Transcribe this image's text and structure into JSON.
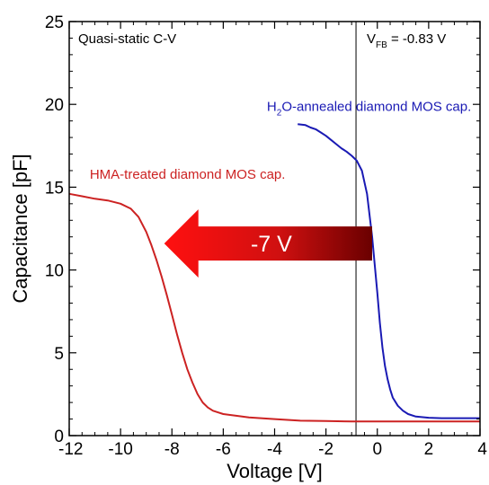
{
  "chart_data": {
    "type": "line",
    "xlabel": "Voltage [V]",
    "ylabel": "Capacitance [pF]",
    "xlim": [
      -12,
      4
    ],
    "ylim": [
      0,
      25
    ],
    "x_ticks": [
      "-12",
      "-10",
      "-8",
      "-6",
      "-4",
      "-2",
      "0",
      "2",
      "4"
    ],
    "y_ticks": [
      "0",
      "5",
      "10",
      "15",
      "20",
      "25"
    ],
    "grid": false,
    "legend": "none",
    "annotations": {
      "corner_label": "Quasi-static C-V",
      "vfb_main": "V",
      "vfb_sub": "FB",
      "vfb_value": " = -0.83 V",
      "vfb_line_x": -0.83,
      "arrow_text": "-7 V",
      "arrow_from_x": -0.2,
      "arrow_to_x": -8.3,
      "arrow_y": 11.6
    },
    "series": [
      {
        "name_pre": "H",
        "name_sub": "2",
        "name_post": "O-annealed diamond MOS cap.",
        "color": "#1a1ab4",
        "label_pos": [
          -4.3,
          19.6
        ],
        "x": [
          -3.1,
          -2.8,
          -2.6,
          -2.4,
          -2.2,
          -2.0,
          -1.8,
          -1.6,
          -1.4,
          -1.2,
          -1.0,
          -0.8,
          -0.6,
          -0.4,
          -0.2,
          0.0,
          0.1,
          0.2,
          0.3,
          0.4,
          0.5,
          0.6,
          0.8,
          1.0,
          1.2,
          1.5,
          2.0,
          2.5,
          3.0,
          4.0
        ],
        "y": [
          18.8,
          18.75,
          18.6,
          18.5,
          18.3,
          18.1,
          17.85,
          17.6,
          17.35,
          17.15,
          16.9,
          16.6,
          16.0,
          14.6,
          12.0,
          8.6,
          6.8,
          5.3,
          4.2,
          3.4,
          2.8,
          2.3,
          1.8,
          1.5,
          1.3,
          1.15,
          1.08,
          1.05,
          1.05,
          1.05
        ]
      },
      {
        "name": "HMA-treated diamond MOS cap.",
        "color": "#cc2222",
        "label_pos": [
          -11.2,
          15.5
        ],
        "x": [
          -12.0,
          -11.5,
          -11.0,
          -10.5,
          -10.0,
          -9.6,
          -9.3,
          -9.0,
          -8.8,
          -8.6,
          -8.4,
          -8.2,
          -8.0,
          -7.8,
          -7.6,
          -7.4,
          -7.2,
          -7.0,
          -6.8,
          -6.6,
          -6.4,
          -6.2,
          -6.0,
          -5.5,
          -5.0,
          -4.0,
          -3.0,
          -2.0,
          -1.0,
          0.0,
          2.0,
          4.0
        ],
        "y": [
          14.6,
          14.45,
          14.3,
          14.2,
          14.0,
          13.7,
          13.2,
          12.3,
          11.5,
          10.6,
          9.6,
          8.5,
          7.3,
          6.1,
          5.0,
          4.0,
          3.2,
          2.5,
          2.0,
          1.7,
          1.5,
          1.4,
          1.3,
          1.2,
          1.1,
          1.0,
          0.9,
          0.88,
          0.85,
          0.85,
          0.85,
          0.85
        ]
      }
    ]
  }
}
